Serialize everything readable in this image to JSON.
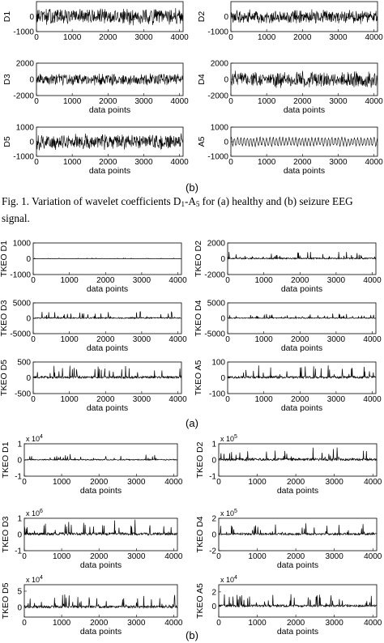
{
  "figure1": {
    "caption": {
      "prefix": "Fig. 1.",
      "text_before": "   Variation of wavelet coefficients D",
      "sub1": "1",
      "text_mid": "-A",
      "sub2": "5",
      "text_after": " for (a) healthy and (b) seizure EEG signal."
    }
  },
  "labels": {
    "part_a": "(a)",
    "part_b": "(b)"
  },
  "chart_data": [
    {
      "id": "s-D1",
      "type": "line",
      "group": "wavelet-seizure",
      "ylabel": "D1",
      "xlabel": "",
      "x_ticks": [
        "0",
        "1000",
        "2000",
        "3000",
        "4000"
      ],
      "y_ticks": [
        "0",
        "-1000"
      ],
      "ylim": [
        -1000,
        1000
      ],
      "xlim": [
        0,
        4100
      ],
      "amplitude": 600
    },
    {
      "id": "s-D2",
      "type": "line",
      "group": "wavelet-seizure",
      "ylabel": "D2",
      "xlabel": "",
      "x_ticks": [
        "0",
        "1000",
        "2000",
        "3000",
        "4000"
      ],
      "y_ticks": [
        "0",
        "-1000"
      ],
      "ylim": [
        -1000,
        1000
      ],
      "xlim": [
        0,
        4100
      ],
      "amplitude": 500
    },
    {
      "id": "s-D3",
      "type": "line",
      "group": "wavelet-seizure",
      "ylabel": "D3",
      "xlabel": "data points",
      "x_ticks": [
        "0",
        "1000",
        "2000",
        "3000",
        "4000"
      ],
      "y_ticks": [
        "2000",
        "0",
        "-2000"
      ],
      "ylim": [
        -2000,
        2000
      ],
      "xlim": [
        0,
        4100
      ],
      "amplitude": 800
    },
    {
      "id": "s-D4",
      "type": "line",
      "group": "wavelet-seizure",
      "ylabel": "D4",
      "xlabel": "data points",
      "x_ticks": [
        "0",
        "1000",
        "2000",
        "3000",
        "4000"
      ],
      "y_ticks": [
        "2000",
        "0",
        "-2000"
      ],
      "ylim": [
        -2000,
        2000
      ],
      "xlim": [
        0,
        4100
      ],
      "amplitude": 1100
    },
    {
      "id": "s-D5",
      "type": "line",
      "group": "wavelet-seizure",
      "ylabel": "D5",
      "xlabel": "data points",
      "x_ticks": [
        "0",
        "1000",
        "2000",
        "3000",
        "4000"
      ],
      "y_ticks": [
        "1000",
        "0",
        "-1000"
      ],
      "ylim": [
        -1000,
        1000
      ],
      "xlim": [
        0,
        4100
      ],
      "amplitude": 600
    },
    {
      "id": "s-A5",
      "type": "line",
      "group": "wavelet-seizure",
      "ylabel": "A5",
      "xlabel": "data points",
      "x_ticks": [
        "0",
        "1000",
        "2000",
        "3000",
        "4000"
      ],
      "y_ticks": [
        "1000",
        "0",
        "-1000"
      ],
      "ylim": [
        -1000,
        1000
      ],
      "xlim": [
        0,
        4100
      ],
      "amplitude": 350
    },
    {
      "id": "h-T1",
      "type": "line",
      "group": "tkeo-healthy",
      "ylabel": "TKEO D1",
      "xlabel": "data points",
      "x_ticks": [
        "0",
        "1000",
        "2000",
        "3000",
        "4000"
      ],
      "y_ticks": [
        "1000",
        "0",
        "-1000"
      ],
      "ylim": [
        -1000,
        1000
      ],
      "xlim": [
        0,
        4100
      ],
      "amplitude": 40
    },
    {
      "id": "h-T2",
      "type": "line",
      "group": "tkeo-healthy",
      "ylabel": "TKEO D2",
      "xlabel": "data points",
      "x_ticks": [
        "0",
        "1000",
        "2000",
        "3000",
        "4000"
      ],
      "y_ticks": [
        "2000",
        "0",
        "-2000"
      ],
      "ylim": [
        -2000,
        2000
      ],
      "xlim": [
        0,
        4100
      ],
      "amplitude": 900
    },
    {
      "id": "h-T3",
      "type": "line",
      "group": "tkeo-healthy",
      "ylabel": "TKEO D3",
      "xlabel": "data points",
      "x_ticks": [
        "0",
        "1000",
        "2000",
        "3000",
        "4000"
      ],
      "y_ticks": [
        "5000",
        "0",
        "-5000"
      ],
      "ylim": [
        -5000,
        5000
      ],
      "xlim": [
        0,
        4100
      ],
      "amplitude": 2000
    },
    {
      "id": "h-T4",
      "type": "line",
      "group": "tkeo-healthy",
      "ylabel": "TKEO D4",
      "xlabel": "data points",
      "x_ticks": [
        "0",
        "1000",
        "2000",
        "3000",
        "4000"
      ],
      "y_ticks": [
        "5000",
        "0",
        "-5000"
      ],
      "ylim": [
        -5000,
        5000
      ],
      "xlim": [
        0,
        4100
      ],
      "amplitude": 1500
    },
    {
      "id": "h-T5",
      "type": "line",
      "group": "tkeo-healthy",
      "ylabel": "TKEO D5",
      "xlabel": "data points",
      "x_ticks": [
        "0",
        "1000",
        "2000",
        "3000",
        "4000"
      ],
      "y_ticks": [
        "500",
        "0",
        "-500"
      ],
      "ylim": [
        -500,
        500
      ],
      "xlim": [
        0,
        4100
      ],
      "amplitude": 380
    },
    {
      "id": "h-T6",
      "type": "line",
      "group": "tkeo-healthy",
      "ylabel": "TKEO A5",
      "xlabel": "data points",
      "x_ticks": [
        "0",
        "1000",
        "2000",
        "3000",
        "4000"
      ],
      "y_ticks": [
        "100",
        "0",
        "-100"
      ],
      "ylim": [
        -100,
        100
      ],
      "xlim": [
        0,
        4100
      ],
      "amplitude": 75
    },
    {
      "id": "b-T1",
      "type": "line",
      "group": "tkeo-seizure",
      "ylabel": "TKEO D1",
      "xlabel": "data points",
      "exponent_label": "x 10",
      "exponent": "4",
      "x_ticks": [
        "0",
        "1000",
        "2000",
        "3000",
        "4000"
      ],
      "y_ticks": [
        "1",
        "0",
        "-1"
      ],
      "ylim": [
        -1,
        1
      ],
      "xlim": [
        0,
        4100
      ],
      "amplitude": 0.35
    },
    {
      "id": "b-T2",
      "type": "line",
      "group": "tkeo-seizure",
      "ylabel": "TKEO D2",
      "xlabel": "data points",
      "exponent_label": "x 10",
      "exponent": "5",
      "x_ticks": [
        "0",
        "1000",
        "2000",
        "3000",
        "4000"
      ],
      "y_ticks": [
        "1",
        "0",
        "-1"
      ],
      "ylim": [
        -1,
        1
      ],
      "xlim": [
        0,
        4100
      ],
      "amplitude": 0.8
    },
    {
      "id": "b-T3",
      "type": "line",
      "group": "tkeo-seizure",
      "ylabel": "TKEO D3",
      "xlabel": "data points",
      "exponent_label": "x 10",
      "exponent": "6",
      "x_ticks": [
        "0",
        "1000",
        "2000",
        "3000",
        "4000"
      ],
      "y_ticks": [
        "1",
        "0",
        "-1"
      ],
      "ylim": [
        -1,
        1
      ],
      "xlim": [
        0,
        4100
      ],
      "amplitude": 0.85
    },
    {
      "id": "b-T4",
      "type": "line",
      "group": "tkeo-seizure",
      "ylabel": "TKEO D4",
      "xlabel": "data points",
      "exponent_label": "x 10",
      "exponent": "5",
      "x_ticks": [
        "0",
        "1000",
        "2000",
        "3000",
        "4000"
      ],
      "y_ticks": [
        "2",
        "0",
        "-2"
      ],
      "ylim": [
        -2,
        2
      ],
      "xlim": [
        0,
        4100
      ],
      "amplitude": 1.3
    },
    {
      "id": "b-T5",
      "type": "line",
      "group": "tkeo-seizure",
      "ylabel": "TKEO D5",
      "xlabel": "data points",
      "exponent_label": "x 10",
      "exponent": "4",
      "x_ticks": [
        "0",
        "1000",
        "2000",
        "3000",
        "4000"
      ],
      "y_ticks": [
        "5",
        "0"
      ],
      "ylim": [
        -3,
        7
      ],
      "xlim": [
        0,
        4100
      ],
      "amplitude": 4.0
    },
    {
      "id": "b-T6",
      "type": "line",
      "group": "tkeo-seizure",
      "ylabel": "TKEO A5",
      "xlabel": "data points",
      "exponent_label": "x 10",
      "exponent": "4",
      "x_ticks": [
        "0",
        "1000",
        "2000",
        "3000",
        "4000"
      ],
      "y_ticks": [
        "2",
        "0"
      ],
      "ylim": [
        -1.5,
        3
      ],
      "xlim": [
        0,
        4100
      ],
      "amplitude": 1.6
    }
  ]
}
